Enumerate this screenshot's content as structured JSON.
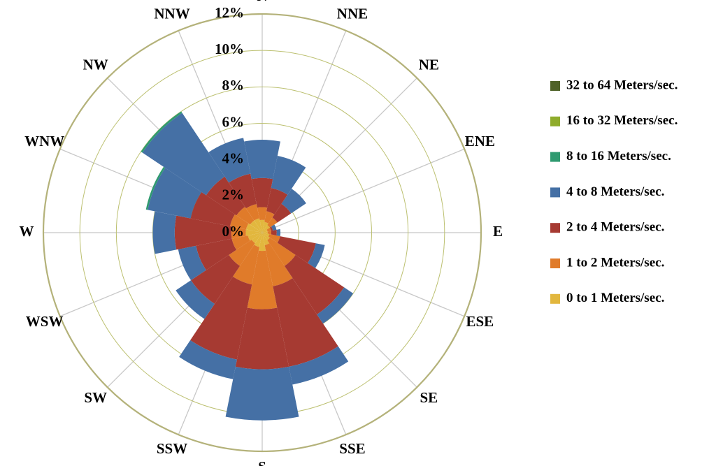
{
  "chart_data": {
    "type": "windrose",
    "categories": [
      "N",
      "NNE",
      "NE",
      "ENE",
      "E",
      "ESE",
      "SE",
      "SSE",
      "S",
      "SSW",
      "SW",
      "WSW",
      "W",
      "WNW",
      "NW",
      "NNW"
    ],
    "series": [
      {
        "name": "32 to 64 Meters/sec.",
        "color": "#4f6228",
        "values": [
          0,
          0,
          0,
          0,
          0,
          0,
          0,
          0,
          0,
          0,
          0,
          0,
          0,
          0,
          0,
          0
        ]
      },
      {
        "name": "16 to 32 Meters/sec.",
        "color": "#8fac2c",
        "values": [
          0,
          0,
          0,
          0,
          0,
          0,
          0,
          0,
          0,
          0,
          0,
          0,
          0,
          0,
          0,
          0
        ]
      },
      {
        "name": "8 to 16 Meters/sec.",
        "color": "#2f9a70",
        "values": [
          0,
          0,
          0,
          0,
          0,
          0,
          0,
          0,
          0,
          0,
          0,
          0,
          0,
          0.1,
          0.1,
          0
        ]
      },
      {
        "name": "4 to 8 Meters/sec.",
        "color": "#4570a5",
        "values": [
          2.1,
          1.8,
          1.0,
          0.2,
          0.2,
          0.5,
          0.6,
          1.0,
          2.8,
          1.1,
          1.0,
          1.0,
          1.2,
          2.4,
          4.2,
          2.0
        ]
      },
      {
        "name": "2 to 4 Meters/sec.",
        "color": "#a63a32",
        "values": [
          1.6,
          1.3,
          0.9,
          0.1,
          0.3,
          2.0,
          3.2,
          4.5,
          3.3,
          4.2,
          2.5,
          2.0,
          3.1,
          2.2,
          2.0,
          1.7
        ]
      },
      {
        "name": "1 to 2 Meters/sec.",
        "color": "#e07b2a",
        "values": [
          0.7,
          0.6,
          0.5,
          0.2,
          0.2,
          0.6,
          1.7,
          2.3,
          3.2,
          2.1,
          1.5,
          0.9,
          0.8,
          0.9,
          0.9,
          0.8
        ]
      },
      {
        "name": "0 to 1 Meters/sec.",
        "color": "#e2b73e",
        "values": [
          0.7,
          0.6,
          0.5,
          0.3,
          0.3,
          0.4,
          0.5,
          0.7,
          1.0,
          0.8,
          0.7,
          0.8,
          0.9,
          0.9,
          0.8,
          0.8
        ]
      }
    ],
    "rlim": [
      0,
      12
    ],
    "rticks": [
      {
        "value": 0,
        "label": "0%"
      },
      {
        "value": 2,
        "label": "2%"
      },
      {
        "value": 4,
        "label": "4%"
      },
      {
        "value": 6,
        "label": "6%"
      },
      {
        "value": 8,
        "label": "8%"
      },
      {
        "value": 10,
        "label": "10%"
      },
      {
        "value": 12,
        "label": "12%"
      }
    ],
    "grid": true
  }
}
